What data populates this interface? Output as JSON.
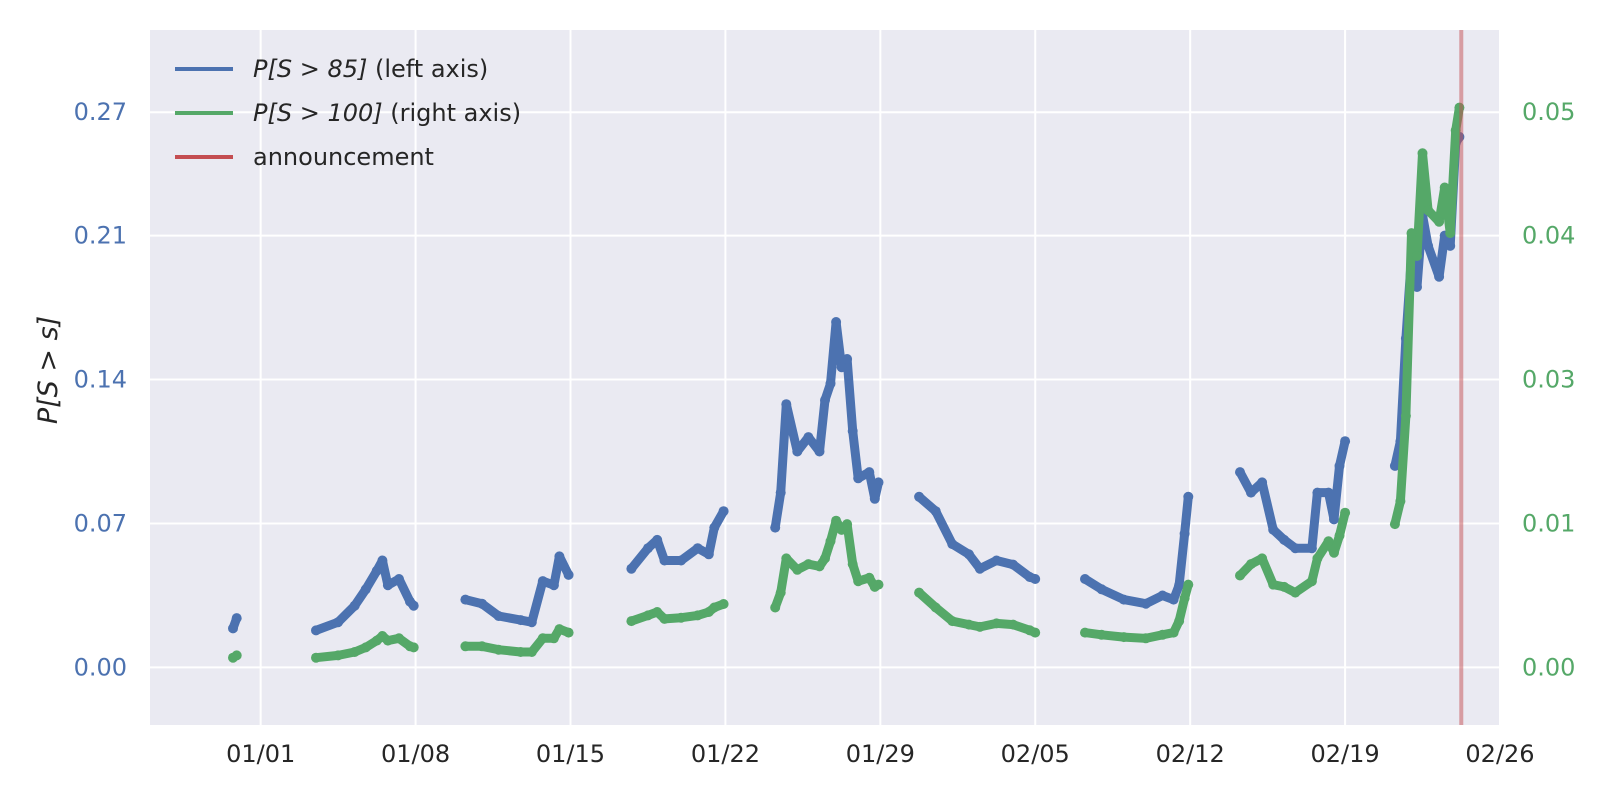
{
  "chart_data": {
    "type": "scatter",
    "ylabel": "P[S > s]",
    "x_ticks": [
      "01/01",
      "01/08",
      "01/15",
      "01/22",
      "01/29",
      "02/05",
      "02/12",
      "02/19",
      "02/26"
    ],
    "y_left_ticks": [
      "0.00",
      "0.07",
      "0.14",
      "0.21",
      "0.27"
    ],
    "y_right_ticks": [
      "0.00",
      "0.01",
      "0.03",
      "0.04",
      "0.05"
    ],
    "y_left_range": [
      -0.028,
      0.31
    ],
    "y_right_range": [
      -0.0051,
      0.0558
    ],
    "x_range": [
      "2019-12-27",
      "2020-02-26"
    ],
    "grid": true,
    "legend_position": "top-left",
    "announcement_date": "2020-02-24 06:00",
    "colors": {
      "left_series": "#4c72b0",
      "right_series": "#55a868",
      "announcement": "#c44e52",
      "plot_background": "#eaeaf2",
      "grid": "#ffffff"
    },
    "legend": [
      {
        "label_math": "P[S > 85]",
        "label_text": " (left axis)",
        "color": "#4c72b0"
      },
      {
        "label_math": "P[S > 100]",
        "label_text": " (right axis)",
        "color": "#55a868"
      },
      {
        "label_math": "",
        "label_text": "announcement",
        "color": "#c44e52"
      }
    ],
    "series": [
      {
        "name": "P[S > 85]",
        "axis": "left",
        "segments": [
          [
            [
              "2019-12-30 18:00",
              0.019
            ],
            [
              "2019-12-30 22:00",
              0.024
            ]
          ],
          [
            [
              "2020-01-03 12:00",
              0.018
            ],
            [
              "2020-01-04 12:00",
              0.022
            ],
            [
              "2020-01-05 06:00",
              0.03
            ],
            [
              "2020-01-05 18:00",
              0.038
            ],
            [
              "2020-01-06 06:00",
              0.047
            ],
            [
              "2020-01-06 12:00",
              0.052
            ],
            [
              "2020-01-06 18:00",
              0.04
            ],
            [
              "2020-01-07 06:00",
              0.043
            ],
            [
              "2020-01-07 18:00",
              0.032
            ],
            [
              "2020-01-07 22:00",
              0.03
            ]
          ],
          [
            [
              "2020-01-10 06:00",
              0.033
            ],
            [
              "2020-01-11 00:00",
              0.031
            ],
            [
              "2020-01-11 18:00",
              0.025
            ],
            [
              "2020-01-12 18:00",
              0.023
            ],
            [
              "2020-01-13 06:00",
              0.022
            ],
            [
              "2020-01-13 18:00",
              0.042
            ],
            [
              "2020-01-14 06:00",
              0.04
            ],
            [
              "2020-01-14 12:00",
              0.054
            ],
            [
              "2020-01-14 22:00",
              0.045
            ]
          ],
          [
            [
              "2020-01-17 18:00",
              0.048
            ],
            [
              "2020-01-18 12:00",
              0.058
            ],
            [
              "2020-01-18 22:00",
              0.062
            ],
            [
              "2020-01-19 06:00",
              0.052
            ],
            [
              "2020-01-20 00:00",
              0.052
            ],
            [
              "2020-01-20 18:00",
              0.058
            ],
            [
              "2020-01-21 06:00",
              0.055
            ],
            [
              "2020-01-21 12:00",
              0.068
            ],
            [
              "2020-01-21 22:00",
              0.076
            ]
          ],
          [
            [
              "2020-01-24 06:00",
              0.068
            ],
            [
              "2020-01-24 12:00",
              0.085
            ],
            [
              "2020-01-24 18:00",
              0.128
            ],
            [
              "2020-01-25 06:00",
              0.105
            ],
            [
              "2020-01-25 18:00",
              0.112
            ],
            [
              "2020-01-26 06:00",
              0.105
            ],
            [
              "2020-01-26 12:00",
              0.13
            ],
            [
              "2020-01-26 18:00",
              0.138
            ],
            [
              "2020-01-27 00:00",
              0.168
            ],
            [
              "2020-01-27 06:00",
              0.146
            ],
            [
              "2020-01-27 12:00",
              0.15
            ],
            [
              "2020-01-27 18:00",
              0.115
            ],
            [
              "2020-01-28 00:00",
              0.092
            ],
            [
              "2020-01-28 12:00",
              0.095
            ],
            [
              "2020-01-28 18:00",
              0.082
            ],
            [
              "2020-01-28 22:00",
              0.09
            ]
          ],
          [
            [
              "2020-01-30 18:00",
              0.083
            ],
            [
              "2020-01-31 12:00",
              0.076
            ],
            [
              "2020-02-01 06:00",
              0.06
            ],
            [
              "2020-02-02 00:00",
              0.055
            ],
            [
              "2020-02-02 12:00",
              0.048
            ],
            [
              "2020-02-03 06:00",
              0.052
            ],
            [
              "2020-02-04 00:00",
              0.05
            ],
            [
              "2020-02-04 18:00",
              0.044
            ],
            [
              "2020-02-05 00:00",
              0.043
            ]
          ],
          [
            [
              "2020-02-07 06:00",
              0.043
            ],
            [
              "2020-02-08 00:00",
              0.038
            ],
            [
              "2020-02-09 00:00",
              0.033
            ],
            [
              "2020-02-10 00:00",
              0.031
            ],
            [
              "2020-02-10 18:00",
              0.035
            ],
            [
              "2020-02-11 06:00",
              0.033
            ],
            [
              "2020-02-11 12:00",
              0.04
            ],
            [
              "2020-02-11 18:00",
              0.065
            ],
            [
              "2020-02-11 22:00",
              0.083
            ]
          ],
          [
            [
              "2020-02-14 06:00",
              0.095
            ],
            [
              "2020-02-14 18:00",
              0.085
            ],
            [
              "2020-02-15 06:00",
              0.09
            ],
            [
              "2020-02-15 18:00",
              0.067
            ],
            [
              "2020-02-16 06:00",
              0.062
            ],
            [
              "2020-02-16 18:00",
              0.058
            ],
            [
              "2020-02-17 12:00",
              0.058
            ],
            [
              "2020-02-17 18:00",
              0.085
            ],
            [
              "2020-02-18 06:00",
              0.085
            ],
            [
              "2020-02-18 12:00",
              0.072
            ],
            [
              "2020-02-18 18:00",
              0.098
            ],
            [
              "2020-02-19 00:00",
              0.11
            ]
          ],
          [
            [
              "2020-02-21 06:00",
              0.098
            ],
            [
              "2020-02-21 12:00",
              0.11
            ],
            [
              "2020-02-21 18:00",
              0.16
            ],
            [
              "2020-02-22 00:00",
              0.2
            ],
            [
              "2020-02-22 06:00",
              0.185
            ],
            [
              "2020-02-22 12:00",
              0.22
            ],
            [
              "2020-02-22 18:00",
              0.205
            ],
            [
              "2020-02-23 06:00",
              0.19
            ],
            [
              "2020-02-23 12:00",
              0.21
            ],
            [
              "2020-02-23 18:00",
              0.205
            ],
            [
              "2020-02-24 00:00",
              0.255
            ],
            [
              "2020-02-24 04:00",
              0.258
            ]
          ]
        ]
      },
      {
        "name": "P[S > 100]",
        "axis": "right",
        "segments": [
          [
            [
              "2019-12-30 18:00",
              0.0008
            ],
            [
              "2019-12-30 22:00",
              0.001
            ]
          ],
          [
            [
              "2020-01-03 12:00",
              0.0008
            ],
            [
              "2020-01-04 12:00",
              0.001
            ],
            [
              "2020-01-05 06:00",
              0.0013
            ],
            [
              "2020-01-05 18:00",
              0.0017
            ],
            [
              "2020-01-06 06:00",
              0.0023
            ],
            [
              "2020-01-06 12:00",
              0.0027
            ],
            [
              "2020-01-06 18:00",
              0.0023
            ],
            [
              "2020-01-07 06:00",
              0.0025
            ],
            [
              "2020-01-07 18:00",
              0.0018
            ],
            [
              "2020-01-07 22:00",
              0.0017
            ]
          ],
          [
            [
              "2020-01-10 06:00",
              0.0018
            ],
            [
              "2020-01-11 00:00",
              0.0018
            ],
            [
              "2020-01-11 18:00",
              0.0015
            ],
            [
              "2020-01-12 18:00",
              0.0013
            ],
            [
              "2020-01-13 06:00",
              0.0013
            ],
            [
              "2020-01-13 18:00",
              0.0025
            ],
            [
              "2020-01-14 06:00",
              0.0025
            ],
            [
              "2020-01-14 12:00",
              0.0033
            ],
            [
              "2020-01-14 22:00",
              0.003
            ]
          ],
          [
            [
              "2020-01-17 18:00",
              0.004
            ],
            [
              "2020-01-18 12:00",
              0.0045
            ],
            [
              "2020-01-18 22:00",
              0.0048
            ],
            [
              "2020-01-19 06:00",
              0.0042
            ],
            [
              "2020-01-20 00:00",
              0.0043
            ],
            [
              "2020-01-20 18:00",
              0.0045
            ],
            [
              "2020-01-21 06:00",
              0.0048
            ],
            [
              "2020-01-21 12:00",
              0.0052
            ],
            [
              "2020-01-21 22:00",
              0.0055
            ]
          ],
          [
            [
              "2020-01-24 06:00",
              0.0052
            ],
            [
              "2020-01-24 12:00",
              0.0065
            ],
            [
              "2020-01-24 18:00",
              0.0095
            ],
            [
              "2020-01-25 06:00",
              0.0085
            ],
            [
              "2020-01-25 18:00",
              0.009
            ],
            [
              "2020-01-26 06:00",
              0.0088
            ],
            [
              "2020-01-26 12:00",
              0.0095
            ],
            [
              "2020-01-26 18:00",
              0.011
            ],
            [
              "2020-01-27 00:00",
              0.0128
            ],
            [
              "2020-01-27 06:00",
              0.012
            ],
            [
              "2020-01-27 12:00",
              0.0125
            ],
            [
              "2020-01-27 18:00",
              0.009
            ],
            [
              "2020-01-28 00:00",
              0.0075
            ],
            [
              "2020-01-28 12:00",
              0.0078
            ],
            [
              "2020-01-28 18:00",
              0.007
            ],
            [
              "2020-01-28 22:00",
              0.0072
            ]
          ],
          [
            [
              "2020-01-30 18:00",
              0.0065
            ],
            [
              "2020-01-31 12:00",
              0.0052
            ],
            [
              "2020-02-01 06:00",
              0.004
            ],
            [
              "2020-02-02 00:00",
              0.0037
            ],
            [
              "2020-02-02 12:00",
              0.0035
            ],
            [
              "2020-02-03 06:00",
              0.0038
            ],
            [
              "2020-02-04 00:00",
              0.0037
            ],
            [
              "2020-02-04 18:00",
              0.0032
            ],
            [
              "2020-02-05 00:00",
              0.003
            ]
          ],
          [
            [
              "2020-02-07 06:00",
              0.003
            ],
            [
              "2020-02-08 00:00",
              0.0028
            ],
            [
              "2020-02-09 00:00",
              0.0026
            ],
            [
              "2020-02-10 00:00",
              0.0025
            ],
            [
              "2020-02-10 18:00",
              0.0028
            ],
            [
              "2020-02-11 06:00",
              0.003
            ],
            [
              "2020-02-11 12:00",
              0.004
            ],
            [
              "2020-02-11 18:00",
              0.006
            ],
            [
              "2020-02-11 22:00",
              0.0072
            ]
          ],
          [
            [
              "2020-02-14 06:00",
              0.008
            ],
            [
              "2020-02-14 18:00",
              0.009
            ],
            [
              "2020-02-15 06:00",
              0.0095
            ],
            [
              "2020-02-15 18:00",
              0.0072
            ],
            [
              "2020-02-16 06:00",
              0.007
            ],
            [
              "2020-02-16 18:00",
              0.0065
            ],
            [
              "2020-02-17 12:00",
              0.0075
            ],
            [
              "2020-02-17 18:00",
              0.0095
            ],
            [
              "2020-02-18 06:00",
              0.011
            ],
            [
              "2020-02-18 12:00",
              0.01
            ],
            [
              "2020-02-18 18:00",
              0.0115
            ],
            [
              "2020-02-19 00:00",
              0.0135
            ]
          ],
          [
            [
              "2020-02-21 06:00",
              0.0125
            ],
            [
              "2020-02-21 12:00",
              0.0145
            ],
            [
              "2020-02-21 18:00",
              0.022
            ],
            [
              "2020-02-22 00:00",
              0.038
            ],
            [
              "2020-02-22 06:00",
              0.036
            ],
            [
              "2020-02-22 12:00",
              0.045
            ],
            [
              "2020-02-22 18:00",
              0.04
            ],
            [
              "2020-02-23 06:00",
              0.039
            ],
            [
              "2020-02-23 12:00",
              0.042
            ],
            [
              "2020-02-23 18:00",
              0.038
            ],
            [
              "2020-02-24 00:00",
              0.047
            ],
            [
              "2020-02-24 04:00",
              0.049
            ]
          ]
        ]
      }
    ]
  }
}
